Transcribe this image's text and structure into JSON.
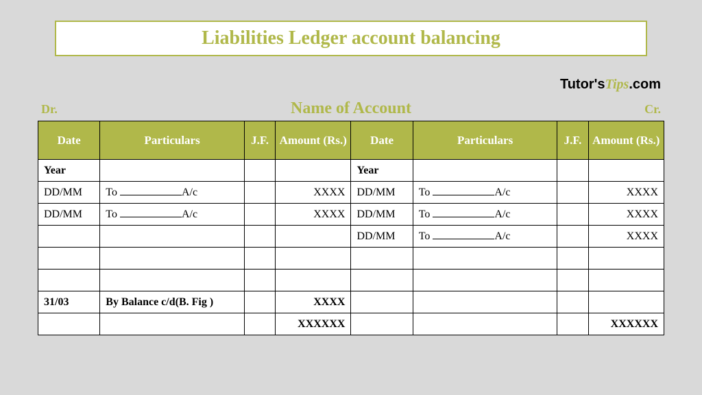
{
  "title": "Liabilities Ledger account balancing",
  "brand": {
    "part1": "Tutor's",
    "part2": "Tips",
    "part3": ".com"
  },
  "labels": {
    "dr": "Dr.",
    "cr": "Cr.",
    "account_name": "Name of Account"
  },
  "columns": {
    "date": "Date",
    "particulars": "Particulars",
    "jf": "J.F.",
    "amount": "Amount (Rs.)"
  },
  "colors": {
    "background": "#d9d9d9",
    "accent": "#b0b84a",
    "border": "#000000",
    "header_text": "#ffffff",
    "cell_bg": "#ffffff"
  },
  "debit_rows": [
    {
      "date": "Year",
      "particulars": "",
      "jf": "",
      "amount": "",
      "bold": true,
      "blank": false
    },
    {
      "date": "DD/MM",
      "particulars_pre": "To ",
      "particulars_post": "A/c",
      "jf": "",
      "amount": "XXXX",
      "blank": true
    },
    {
      "date": "DD/MM",
      "particulars_pre": "To ",
      "particulars_post": "A/c",
      "jf": "",
      "amount": "XXXX",
      "blank": true
    },
    {
      "date": "",
      "particulars": "",
      "jf": "",
      "amount": "",
      "blank": false
    },
    {
      "date": "",
      "particulars": "",
      "jf": "",
      "amount": "",
      "blank": false
    },
    {
      "date": "",
      "particulars": "",
      "jf": "",
      "amount": "",
      "blank": false
    },
    {
      "date": "31/03",
      "particulars": "By Balance c/d(B. Fig )",
      "jf": "",
      "amount": "XXXX",
      "bold": true,
      "blank": false
    },
    {
      "date": "",
      "particulars": "",
      "jf": "",
      "amount": "XXXXXX",
      "bold": true,
      "blank": false
    }
  ],
  "credit_rows": [
    {
      "date": "Year",
      "particulars": "",
      "jf": "",
      "amount": "",
      "bold": true,
      "blank": false
    },
    {
      "date": "DD/MM",
      "particulars_pre": "To ",
      "particulars_post": "A/c",
      "jf": "",
      "amount": "XXXX",
      "blank": true
    },
    {
      "date": "DD/MM",
      "particulars_pre": "To ",
      "particulars_post": "A/c",
      "jf": "",
      "amount": "XXXX",
      "blank": true
    },
    {
      "date": "DD/MM",
      "particulars_pre": "To ",
      "particulars_post": "A/c",
      "jf": "",
      "amount": "XXXX",
      "blank": true
    },
    {
      "date": "",
      "particulars": "",
      "jf": "",
      "amount": "",
      "blank": false
    },
    {
      "date": "",
      "particulars": "",
      "jf": "",
      "amount": "",
      "blank": false
    },
    {
      "date": "",
      "particulars": "",
      "jf": "",
      "amount": "",
      "blank": false
    },
    {
      "date": "",
      "particulars": "",
      "jf": "",
      "amount": "XXXXXX",
      "bold": true,
      "blank": false
    }
  ]
}
